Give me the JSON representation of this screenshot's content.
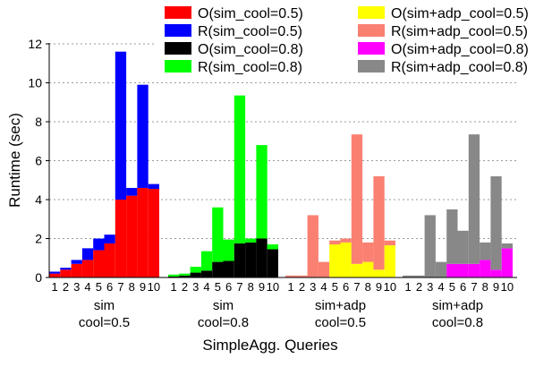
{
  "chart_data": {
    "type": "bar",
    "stacked": true,
    "xlabel": "SimpleAgg. Queries",
    "ylabel": "Runtime (sec)",
    "ylim": [
      0,
      12
    ],
    "yticks": [
      0,
      2,
      4,
      6,
      8,
      10,
      12
    ],
    "grid": "horizontal dotted",
    "legend": "top, 3 columns",
    "categories": [
      "1",
      "2",
      "3",
      "4",
      "5",
      "6",
      "7",
      "8",
      "9",
      "10"
    ],
    "groups": [
      {
        "label_line1": "sim",
        "label_line2": "cool=0.5",
        "o_series": "O(sim_cool=0.5)",
        "r_series": "R(sim_cool=0.5)",
        "o_color": "#ff0000",
        "r_color": "#0000ff",
        "o_values": [
          0.2,
          0.4,
          0.7,
          0.9,
          1.4,
          1.75,
          4.0,
          4.2,
          4.6,
          4.55
        ],
        "r_values": [
          0.1,
          0.1,
          0.2,
          0.6,
          0.6,
          0.45,
          7.6,
          0.4,
          5.3,
          0.25
        ]
      },
      {
        "label_line1": "sim",
        "label_line2": "cool=0.8",
        "o_series": "O(sim_cool=0.8)",
        "r_series": "R(sim_cool=0.8)",
        "o_color": "#000000",
        "r_color": "#00ff00",
        "o_values": [
          0.05,
          0.1,
          0.25,
          0.35,
          0.8,
          0.85,
          1.75,
          1.8,
          2.0,
          1.45
        ],
        "r_values": [
          0.1,
          0.1,
          0.3,
          1.0,
          2.8,
          1.1,
          7.6,
          0.2,
          4.8,
          0.25
        ]
      },
      {
        "label_line1": "sim+adp",
        "label_line2": "cool=0.5",
        "o_series": "O(sim+adp_cool=0.5)",
        "r_series": "R(sim+adp_cool=0.5)",
        "o_color": "#ffff00",
        "r_color": "#fa8072",
        "o_values": [
          0.0,
          0.0,
          0.0,
          0.0,
          1.7,
          1.8,
          0.7,
          0.8,
          0.4,
          1.65
        ],
        "r_values": [
          0.1,
          0.1,
          3.2,
          0.8,
          0.2,
          0.2,
          6.65,
          1.0,
          4.8,
          0.25
        ]
      },
      {
        "label_line1": "sim+adp",
        "label_line2": "cool=0.8",
        "o_series": "O(sim+adp_cool=0.8)",
        "r_series": "R(sim+adp_cool=0.8)",
        "o_color": "#ff00ff",
        "r_color": "#888888",
        "o_values": [
          0.0,
          0.0,
          0.0,
          0.0,
          0.7,
          0.7,
          0.7,
          0.9,
          0.4,
          1.5
        ],
        "r_values": [
          0.1,
          0.1,
          3.2,
          0.8,
          2.8,
          1.7,
          6.65,
          0.9,
          4.8,
          0.25
        ]
      }
    ],
    "legend_entries": [
      {
        "label": "O(sim_cool=0.5)",
        "color": "#ff0000"
      },
      {
        "label": "O(sim+adp_cool=0.5)",
        "color": "#ffff00"
      },
      {
        "label": "R(sim_cool=0.5)",
        "color": "#0000ff"
      },
      {
        "label": "R(sim+adp_cool=0.5)",
        "color": "#fa8072"
      },
      {
        "label": "O(sim_cool=0.8)",
        "color": "#000000"
      },
      {
        "label": "O(sim+adp_cool=0.8)",
        "color": "#ff00ff"
      },
      {
        "label": "R(sim_cool=0.8)",
        "color": "#00ff00"
      },
      {
        "label": "R(sim+adp_cool=0.8)",
        "color": "#888888"
      }
    ]
  }
}
